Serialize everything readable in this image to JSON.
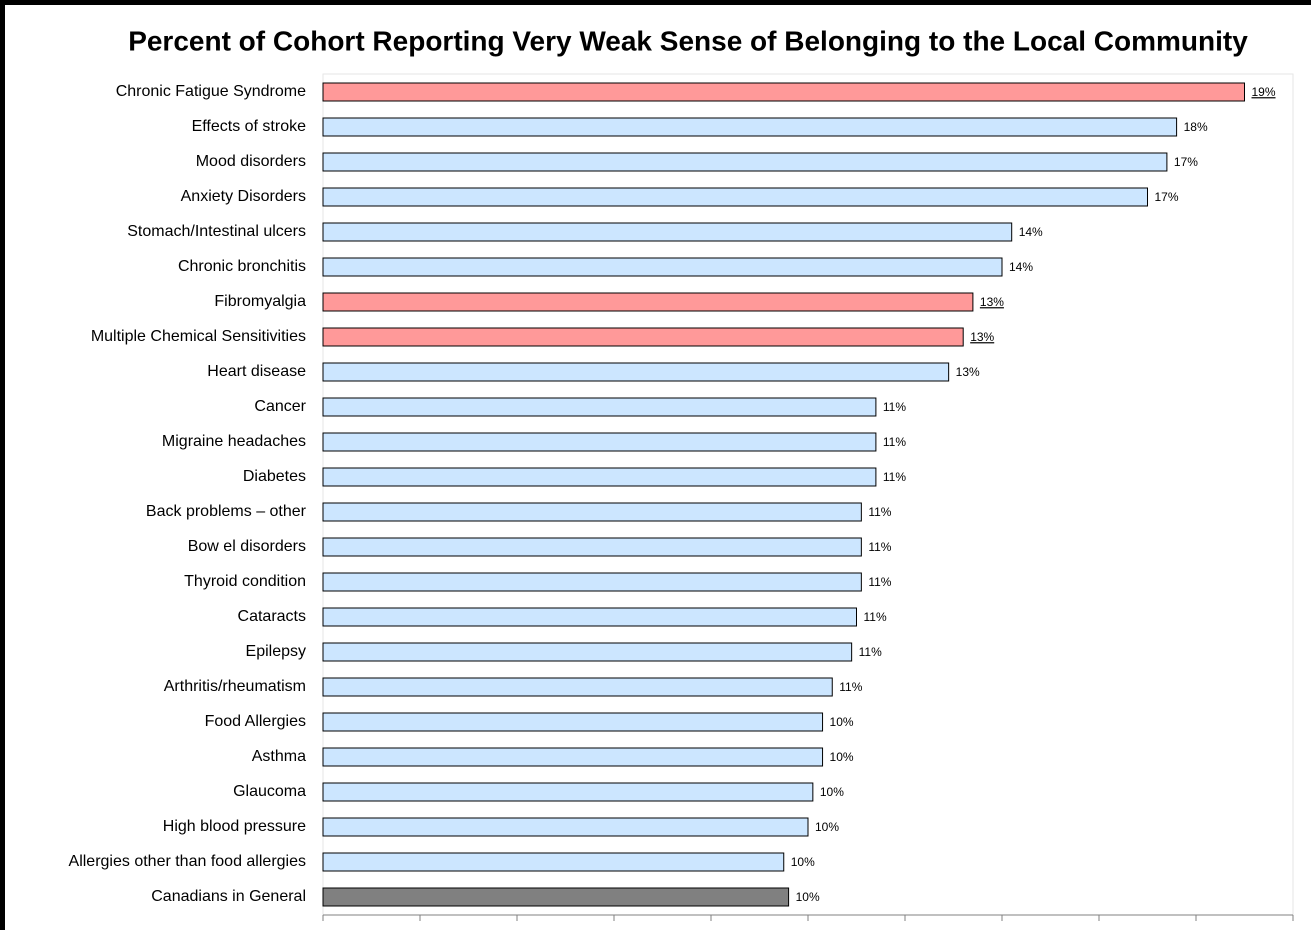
{
  "chart_data": {
    "type": "barh",
    "title": "Percent of Cohort Reporting Very Weak Sense of Belonging to the Local Community",
    "categories": [
      "Chronic Fatigue Syndrome",
      "Effects of stroke",
      "Mood disorders",
      "Anxiety Disorders",
      "Stomach/Intestinal ulcers",
      "Chronic bronchitis",
      "Fibromyalgia",
      "Multiple Chemical Sensitivities",
      "Heart disease",
      "Cancer",
      "Migraine headaches",
      "Diabetes",
      "Back problems – other",
      "Bow el disorders",
      "Thyroid condition",
      "Cataracts",
      "Epilepsy",
      "Arthritis/rheumatism",
      "Food Allergies",
      "Asthma",
      "Glaucoma",
      "High blood pressure",
      "Allergies other than food allergies",
      "Canadians in General"
    ],
    "values": [
      19.0,
      17.6,
      17.4,
      17.0,
      14.2,
      14.0,
      13.4,
      13.2,
      12.9,
      11.4,
      11.4,
      11.4,
      11.1,
      11.1,
      11.1,
      11.0,
      10.9,
      10.5,
      10.3,
      10.3,
      10.1,
      10.0,
      9.5,
      9.6
    ],
    "value_labels": [
      "19%",
      "18%",
      "17%",
      "17%",
      "14%",
      "14%",
      "13%",
      "13%",
      "13%",
      "11%",
      "11%",
      "11%",
      "11%",
      "11%",
      "11%",
      "11%",
      "11%",
      "11%",
      "10%",
      "10%",
      "10%",
      "10%",
      "10%",
      "10%"
    ],
    "colors": [
      "#ff9999",
      "#cce6ff",
      "#cce6ff",
      "#cce6ff",
      "#cce6ff",
      "#cce6ff",
      "#ff9999",
      "#ff9999",
      "#cce6ff",
      "#cce6ff",
      "#cce6ff",
      "#cce6ff",
      "#cce6ff",
      "#cce6ff",
      "#cce6ff",
      "#cce6ff",
      "#cce6ff",
      "#cce6ff",
      "#cce6ff",
      "#cce6ff",
      "#cce6ff",
      "#cce6ff",
      "#cce6ff",
      "#808080"
    ],
    "underline": [
      true,
      false,
      false,
      false,
      false,
      false,
      true,
      true,
      false,
      false,
      false,
      false,
      false,
      false,
      false,
      false,
      false,
      false,
      false,
      false,
      false,
      false,
      false,
      false
    ],
    "xlim": [
      0,
      20
    ],
    "xticks": [
      0,
      2,
      4,
      6,
      8,
      10,
      12,
      14,
      16,
      18,
      20
    ]
  }
}
